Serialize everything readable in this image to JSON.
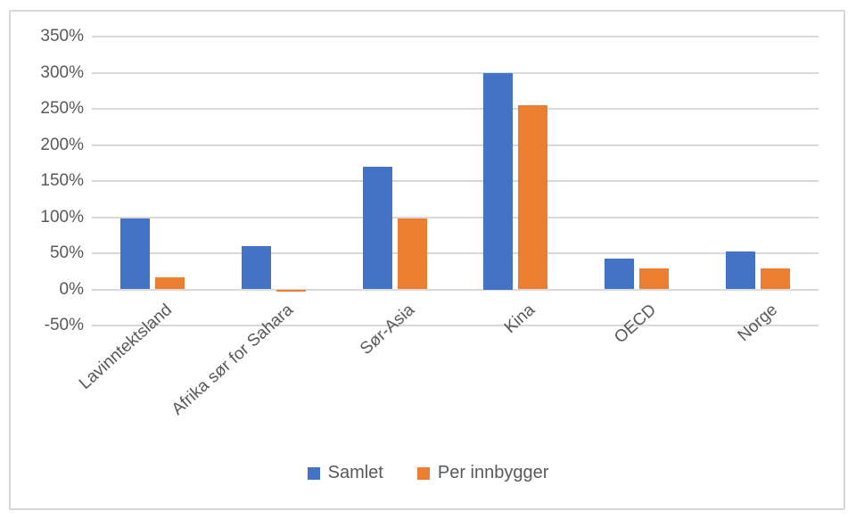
{
  "chart_data": {
    "type": "bar",
    "title": "",
    "xlabel": "",
    "ylabel": "",
    "categories": [
      "Lavinntektsland",
      "Afrika sør for Sahara",
      "Sør-Asia",
      "Kina",
      "OECD",
      "Norge"
    ],
    "series": [
      {
        "name": "Samlet",
        "color": "#4472C4",
        "values": [
          98,
          60,
          170,
          300,
          43,
          53
        ]
      },
      {
        "name": "Per innbygger",
        "color": "#ED7D31",
        "values": [
          17,
          -3,
          98,
          255,
          29,
          29
        ]
      }
    ],
    "ylim": [
      -50,
      350
    ],
    "ytick_step": 50,
    "ytick_labels": [
      "350%",
      "300%",
      "250%",
      "200%",
      "150%",
      "100%",
      "50%",
      "0%",
      "-50%"
    ],
    "grid": true,
    "legend_position": "bottom",
    "colors": {
      "gridline": "#D9D9D9",
      "axis_text": "#595959",
      "frame_border": "#D8D8D8",
      "background": "#FFFFFF"
    }
  }
}
